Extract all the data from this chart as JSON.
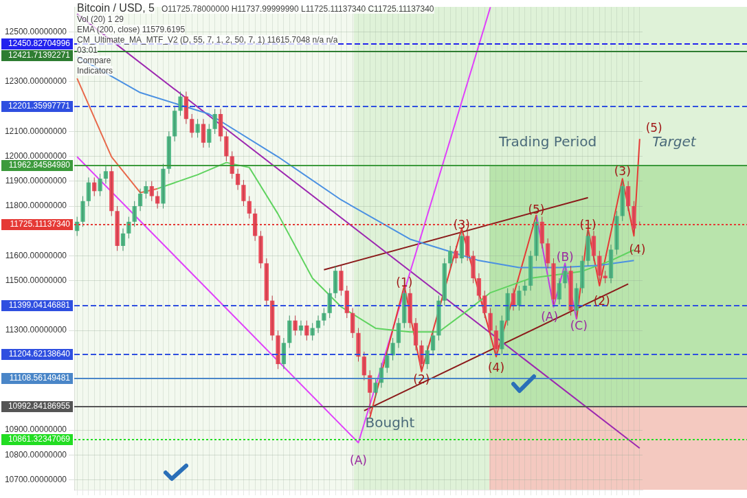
{
  "chart_data": {
    "type": "candlestick",
    "title": "Bitcoin / USD, 5",
    "categories": [
      null,
      null,
      null,
      null,
      null,
      null,
      null,
      null,
      null,
      null,
      null,
      null,
      null,
      null,
      null,
      null,
      null,
      null,
      null,
      null,
      null,
      null,
      null,
      null,
      null,
      null,
      null,
      null,
      null,
      null,
      null,
      null,
      null,
      null,
      null,
      null,
      null,
      null,
      null,
      null,
      null,
      null,
      null,
      null,
      null,
      null,
      null,
      null,
      null,
      null,
      null,
      null,
      null,
      null,
      null,
      null,
      null,
      null,
      null,
      null,
      null,
      null,
      null,
      null,
      null,
      null,
      null,
      null,
      null,
      null,
      null,
      null,
      null,
      null,
      null,
      null,
      null,
      null,
      null,
      null,
      null,
      null,
      null,
      null,
      null,
      null,
      null,
      null,
      null,
      null,
      null,
      null,
      null,
      null,
      null,
      null,
      null,
      null,
      null
    ],
    "ohlc": [
      [
        11700,
        11757,
        11680,
        11737
      ],
      [
        11737,
        11840,
        11717,
        11820
      ],
      [
        11820,
        11915,
        11800,
        11895
      ],
      [
        11895,
        11915,
        11840,
        11860
      ],
      [
        11860,
        11930,
        11840,
        11910
      ],
      [
        11910,
        11960,
        11890,
        11940
      ],
      [
        11940,
        11960,
        11760,
        11780
      ],
      [
        11780,
        11800,
        11620,
        11640
      ],
      [
        11640,
        11710,
        11620,
        11690
      ],
      [
        11690,
        11757,
        11670,
        11737
      ],
      [
        11737,
        11820,
        11717,
        11800
      ],
      [
        11800,
        11870,
        11780,
        11850
      ],
      [
        11850,
        11900,
        11830,
        11880
      ],
      [
        11880,
        11900,
        11820,
        11840
      ],
      [
        11840,
        11860,
        11790,
        11810
      ],
      [
        11810,
        11970,
        11790,
        11950
      ],
      [
        11950,
        12100,
        11930,
        12080
      ],
      [
        12080,
        12203,
        12060,
        12183
      ],
      [
        12183,
        12260,
        12163,
        12240
      ],
      [
        12240,
        12260,
        12130,
        12150
      ],
      [
        12150,
        12170,
        12075,
        12095
      ],
      [
        12095,
        12150,
        12075,
        12130
      ],
      [
        12130,
        12150,
        12035,
        12055
      ],
      [
        12055,
        12130,
        12035,
        12110
      ],
      [
        12110,
        12190,
        12090,
        12170
      ],
      [
        12170,
        12190,
        12060,
        12080
      ],
      [
        12080,
        12100,
        11980,
        12000
      ],
      [
        12000,
        12020,
        11910,
        11930
      ],
      [
        11930,
        11950,
        11865,
        11885
      ],
      [
        11885,
        11905,
        11800,
        11820
      ],
      [
        11820,
        11840,
        11750,
        11770
      ],
      [
        11770,
        11790,
        11660,
        11680
      ],
      [
        11680,
        11700,
        11550,
        11570
      ],
      [
        11570,
        11590,
        11400,
        11420
      ],
      [
        11420,
        11440,
        11260,
        11280
      ],
      [
        11280,
        11300,
        11145,
        11165
      ],
      [
        11165,
        11270,
        11145,
        11250
      ],
      [
        11250,
        11360,
        11230,
        11340
      ],
      [
        11340,
        11360,
        11280,
        11300
      ],
      [
        11300,
        11340,
        11280,
        11320
      ],
      [
        11320,
        11340,
        11260,
        11280
      ],
      [
        11280,
        11330,
        11260,
        11310
      ],
      [
        11310,
        11360,
        11290,
        11340
      ],
      [
        11340,
        11390,
        11320,
        11370
      ],
      [
        11370,
        11470,
        11350,
        11450
      ],
      [
        11450,
        11560,
        11430,
        11540
      ],
      [
        11540,
        11560,
        11440,
        11460
      ],
      [
        11460,
        11480,
        11350,
        11370
      ],
      [
        11370,
        11390,
        11270,
        11290
      ],
      [
        11290,
        11310,
        11175,
        11195
      ],
      [
        11195,
        11215,
        11100,
        11120
      ],
      [
        11120,
        11140,
        10965,
        11050
      ],
      [
        11050,
        11110,
        11030,
        11090
      ],
      [
        11090,
        11170,
        11070,
        11150
      ],
      [
        11150,
        11220,
        11130,
        11200
      ],
      [
        11200,
        11270,
        11180,
        11250
      ],
      [
        11250,
        11350,
        11230,
        11330
      ],
      [
        11330,
        11470,
        11310,
        11450
      ],
      [
        11450,
        11470,
        11310,
        11330
      ],
      [
        11330,
        11350,
        11220,
        11240
      ],
      [
        11240,
        11260,
        11145,
        11165
      ],
      [
        11165,
        11240,
        11145,
        11220
      ],
      [
        11220,
        11300,
        11200,
        11280
      ],
      [
        11280,
        11440,
        11260,
        11420
      ],
      [
        11420,
        11590,
        11400,
        11570
      ],
      [
        11570,
        11640,
        11550,
        11620
      ],
      [
        11620,
        11640,
        11570,
        11590
      ],
      [
        11590,
        11700,
        11570,
        11680
      ],
      [
        11680,
        11700,
        11580,
        11600
      ],
      [
        11600,
        11620,
        11490,
        11510
      ],
      [
        11510,
        11530,
        11420,
        11440
      ],
      [
        11440,
        11460,
        11350,
        11370
      ],
      [
        11370,
        11390,
        11280,
        11300
      ],
      [
        11300,
        11320,
        11205,
        11225
      ],
      [
        11225,
        11360,
        11205,
        11340
      ],
      [
        11340,
        11470,
        11320,
        11450
      ],
      [
        11450,
        11470,
        11380,
        11400
      ],
      [
        11400,
        11480,
        11380,
        11460
      ],
      [
        11460,
        11500,
        11440,
        11480
      ],
      [
        11480,
        11620,
        11460,
        11600
      ],
      [
        11600,
        11757,
        11580,
        11737
      ],
      [
        11737,
        11757,
        11630,
        11650
      ],
      [
        11650,
        11670,
        11550,
        11570
      ],
      [
        11570,
        11590,
        11405,
        11425
      ],
      [
        11425,
        11510,
        11405,
        11490
      ],
      [
        11490,
        11560,
        11470,
        11540
      ],
      [
        11540,
        11560,
        11360,
        11380
      ],
      [
        11380,
        11490,
        11360,
        11470
      ],
      [
        11470,
        11600,
        11450,
        11580
      ],
      [
        11580,
        11700,
        11560,
        11680
      ],
      [
        11680,
        11700,
        11580,
        11600
      ],
      [
        11600,
        11620,
        11500,
        11520
      ],
      [
        11520,
        11540,
        11490,
        11510
      ],
      [
        11510,
        11645,
        11490,
        11625
      ],
      [
        11625,
        11780,
        11605,
        11760
      ],
      [
        11760,
        11900,
        11740,
        11880
      ],
      [
        11880,
        11900,
        11780,
        11800
      ],
      [
        11800,
        11820,
        11690,
        11710
      ],
      [
        11725.78,
        11737.9999999,
        11725.1113734,
        11725.1113734
      ]
    ],
    "series": [
      {
        "type": "line",
        "color": "#4a90e2",
        "values": [
          12400,
          null,
          null,
          null,
          null,
          null,
          null,
          null,
          null,
          null,
          null,
          12256,
          null,
          null,
          null,
          null,
          null,
          null,
          null,
          null,
          null,
          null,
          null,
          12170,
          null,
          null,
          null,
          null,
          null,
          null,
          null,
          null,
          null,
          null,
          null,
          11998,
          null,
          null,
          null,
          null,
          null,
          null,
          null,
          null,
          null,
          null,
          11825,
          null,
          null,
          null,
          null,
          null,
          null,
          null,
          null,
          null,
          null,
          null,
          11667,
          null,
          null,
          null,
          null,
          null,
          11624,
          null,
          null,
          null,
          null,
          null,
          11581,
          null,
          null,
          null,
          null,
          null,
          null,
          11553,
          null,
          null,
          null,
          null,
          null,
          null,
          11553,
          null,
          null,
          null,
          null,
          null,
          null,
          11562,
          null,
          null,
          null,
          null,
          null,
          11581,
          null
        ]
      },
      {
        "type": "line",
        "color": "#e8684a",
        "values": [
          12313,
          null,
          null,
          null,
          null,
          null,
          11998,
          null,
          null,
          null,
          null,
          11854,
          null,
          null,
          11870,
          null,
          null,
          null,
          null,
          null,
          null,
          null,
          null,
          null,
          null,
          null,
          null,
          null,
          null,
          null,
          null,
          null,
          null,
          null,
          null,
          null,
          null,
          null,
          null,
          null,
          null,
          null,
          null,
          null,
          null,
          null,
          null,
          null,
          null,
          null,
          null,
          null,
          null,
          null,
          null,
          null,
          null,
          null,
          null,
          null,
          null,
          null,
          null,
          null,
          null,
          null,
          null,
          null,
          null,
          null,
          null,
          null,
          null,
          null,
          null,
          null,
          null,
          null,
          null,
          null,
          null,
          null,
          null,
          null,
          null,
          null,
          null,
          null,
          null,
          null,
          null,
          null,
          null,
          null,
          null,
          null,
          null,
          null,
          null
        ]
      },
      {
        "type": "line",
        "color": "#5fd35f",
        "values": [
          null,
          null,
          null,
          null,
          null,
          null,
          null,
          null,
          null,
          null,
          null,
          null,
          null,
          null,
          11870,
          null,
          null,
          null,
          null,
          null,
          null,
          11926,
          null,
          null,
          null,
          null,
          11975,
          null,
          null,
          null,
          11955,
          null,
          null,
          null,
          null,
          11768,
          null,
          null,
          null,
          null,
          null,
          11510,
          null,
          null,
          null,
          null,
          11395,
          null,
          null,
          null,
          null,
          null,
          11309,
          null,
          null,
          null,
          null,
          null,
          11294,
          null,
          null,
          null,
          null,
          11294,
          null,
          null,
          null,
          null,
          11380,
          null,
          null,
          null,
          11452,
          null,
          null,
          null,
          null,
          null,
          null,
          11510,
          null,
          null,
          null,
          null,
          null,
          null,
          null,
          null,
          11538,
          null,
          null,
          null,
          null,
          11581,
          null,
          null,
          null,
          11624,
          null
        ]
      },
      {
        "type": "line",
        "color": "#e53935",
        "values": [
          null,
          null,
          null,
          null,
          null,
          null,
          null,
          null,
          null,
          null,
          null,
          null,
          null,
          null,
          null,
          null,
          null,
          null,
          null,
          null,
          null,
          null,
          null,
          null,
          null,
          null,
          null,
          null,
          null,
          null,
          null,
          null,
          null,
          null,
          null,
          null,
          null,
          null,
          null,
          null,
          null,
          null,
          null,
          null,
          null,
          null,
          null,
          null,
          null,
          null,
          null,
          10950,
          null,
          null,
          null,
          null,
          null,
          11480,
          null,
          null,
          11135,
          null,
          null,
          null,
          null,
          null,
          null,
          11710,
          null,
          null,
          null,
          null,
          null,
          11195,
          null,
          null,
          null,
          null,
          null,
          null,
          11765,
          null,
          null,
          null,
          null,
          null,
          null,
          null,
          null,
          null,
          null,
          null,
          null,
          null,
          null,
          null,
          null,
          null,
          null
        ]
      },
      {
        "type": "line",
        "color": "#c040e0",
        "values": [
          null,
          null,
          null,
          null,
          null,
          null,
          null,
          null,
          null,
          null,
          null,
          null,
          null,
          null,
          null,
          null,
          null,
          null,
          null,
          null,
          null,
          null,
          null,
          null,
          null,
          null,
          null,
          null,
          null,
          null,
          null,
          null,
          null,
          null,
          null,
          null,
          null,
          null,
          null,
          null,
          null,
          null,
          null,
          null,
          null,
          null,
          null,
          null,
          null,
          null,
          null,
          null,
          null,
          null,
          null,
          null,
          null,
          null,
          null,
          null,
          null,
          null,
          null,
          null,
          null,
          null,
          null,
          null,
          null,
          null,
          null,
          null,
          null,
          null,
          null,
          null,
          null,
          null,
          null,
          null,
          11765,
          null,
          null,
          11395,
          null,
          11570,
          null,
          11345,
          null,
          null,
          null,
          null,
          null,
          null,
          null,
          null,
          null,
          null,
          null
        ]
      },
      {
        "type": "line",
        "color": "#e53935",
        "values": [
          null,
          null,
          null,
          null,
          null,
          null,
          null,
          null,
          null,
          null,
          null,
          null,
          null,
          null,
          null,
          null,
          null,
          null,
          null,
          null,
          null,
          null,
          null,
          null,
          null,
          null,
          null,
          null,
          null,
          null,
          null,
          null,
          null,
          null,
          null,
          null,
          null,
          null,
          null,
          null,
          null,
          null,
          null,
          null,
          null,
          null,
          null,
          null,
          null,
          null,
          null,
          null,
          null,
          null,
          null,
          null,
          null,
          null,
          null,
          null,
          null,
          null,
          null,
          null,
          null,
          null,
          null,
          null,
          null,
          null,
          null,
          null,
          null,
          null,
          null,
          null,
          null,
          null,
          null,
          null,
          null,
          null,
          null,
          null,
          null,
          null,
          null,
          11345,
          null,
          11710,
          null,
          11480,
          null,
          null,
          null,
          11910,
          null,
          11680,
          12070
        ]
      },
      {
        "type": "line",
        "color": "#e040fb",
        "values": [
          11998,
          null,
          null,
          null,
          null,
          null,
          null,
          null,
          null,
          null,
          null,
          null,
          null,
          null,
          null,
          null,
          null,
          null,
          null,
          null,
          null,
          null,
          null,
          null,
          null,
          null,
          null,
          null,
          null,
          null,
          null,
          null,
          null,
          null,
          null,
          null,
          null,
          null,
          null,
          null,
          null,
          null,
          null,
          null,
          null,
          null,
          null,
          null,
          null,
          10849,
          null,
          null,
          null,
          null,
          null,
          null,
          null,
          null,
          null,
          null,
          null,
          null,
          null,
          null,
          null,
          null,
          null,
          null,
          null,
          null,
          null,
          null,
          12600,
          null,
          null,
          null,
          null,
          null,
          null,
          null,
          null,
          null,
          null,
          null,
          null,
          null,
          null,
          null,
          null,
          null,
          null,
          null,
          null,
          null,
          null,
          null,
          null,
          null,
          null
        ]
      },
      {
        "type": "line",
        "color": "#9c27b0",
        "values": [
          12572,
          null,
          null,
          null,
          null,
          null,
          null,
          null,
          null,
          null,
          null,
          null,
          null,
          null,
          null,
          null,
          null,
          null,
          null,
          null,
          null,
          null,
          null,
          null,
          null,
          null,
          null,
          null,
          null,
          null,
          null,
          null,
          null,
          null,
          null,
          null,
          null,
          null,
          null,
          null,
          null,
          null,
          null,
          null,
          null,
          null,
          null,
          null,
          null,
          null,
          null,
          null,
          null,
          null,
          null,
          null,
          null,
          null,
          null,
          null,
          null,
          null,
          null,
          null,
          null,
          null,
          null,
          null,
          null,
          null,
          null,
          null,
          null,
          null,
          null,
          null,
          null,
          null,
          null,
          null,
          null,
          null,
          null,
          null,
          null,
          null,
          null,
          null,
          null,
          null,
          null,
          null,
          null,
          null,
          null,
          null,
          null,
          null,
          10827
        ]
      },
      {
        "type": "line",
        "color": "#8b1a1a",
        "values": [
          null,
          null,
          null,
          null,
          null,
          null,
          null,
          null,
          null,
          null,
          null,
          null,
          null,
          null,
          null,
          null,
          null,
          null,
          null,
          null,
          null,
          null,
          null,
          null,
          null,
          null,
          null,
          null,
          null,
          null,
          null,
          null,
          null,
          null,
          null,
          null,
          null,
          null,
          null,
          null,
          null,
          null,
          null,
          11544,
          null,
          null,
          null,
          null,
          null,
          null,
          null,
          null,
          null,
          null,
          null,
          null,
          null,
          null,
          null,
          null,
          null,
          null,
          null,
          null,
          null,
          null,
          null,
          null,
          null,
          null,
          null,
          null,
          null,
          null,
          null,
          null,
          null,
          null,
          null,
          null,
          null,
          null,
          null,
          null,
          null,
          null,
          null,
          null,
          null,
          11834,
          null,
          null,
          null,
          null,
          null,
          null,
          null,
          null,
          null
        ]
      },
      {
        "type": "line",
        "color": "#8b1a1a",
        "values": [
          null,
          null,
          null,
          null,
          null,
          null,
          null,
          null,
          null,
          null,
          null,
          null,
          null,
          null,
          null,
          null,
          null,
          null,
          null,
          null,
          null,
          null,
          null,
          null,
          null,
          null,
          null,
          null,
          null,
          null,
          null,
          null,
          null,
          null,
          null,
          null,
          null,
          null,
          null,
          null,
          null,
          null,
          null,
          null,
          null,
          null,
          null,
          null,
          null,
          null,
          10978,
          null,
          null,
          null,
          null,
          null,
          null,
          null,
          null,
          null,
          null,
          null,
          null,
          null,
          null,
          null,
          null,
          null,
          null,
          null,
          null,
          null,
          null,
          null,
          null,
          null,
          null,
          null,
          null,
          null,
          null,
          null,
          null,
          null,
          null,
          null,
          null,
          null,
          null,
          null,
          null,
          null,
          null,
          null,
          null,
          null,
          11487,
          null,
          null
        ]
      }
    ],
    "ylim": [
      10660,
      12600
    ],
    "yticks": [
      {
        "value": 10700,
        "label": "10700.00000000"
      },
      {
        "value": 10800,
        "label": "10800.00000000"
      },
      {
        "value": 10900,
        "label": "10900.00000000"
      },
      {
        "value": 11300,
        "label": "11300.00000000"
      },
      {
        "value": 11500,
        "label": "11500.00000000"
      },
      {
        "value": 11600,
        "label": "11600.00000000"
      },
      {
        "value": 11800,
        "label": "11800.00000000"
      },
      {
        "value": 11900,
        "label": "11900.00000000"
      },
      {
        "value": 12000,
        "label": "12000.00000000"
      },
      {
        "value": 12100,
        "label": "12100.00000000"
      },
      {
        "value": 12300,
        "label": "12300.00000000"
      },
      {
        "value": 12500,
        "label": "12500.00000000"
      }
    ],
    "tick_labels": "y",
    "grid": true,
    "ref_lines": [
      {
        "axis": "y",
        "value": 12450.82704996,
        "label": "12450.82704996",
        "color": "#2222ee",
        "line_style": "dashed"
      },
      {
        "axis": "y",
        "value": 12421.71392271,
        "label": "12421.71392271",
        "color": "#2e7d32",
        "line_style": "solid"
      },
      {
        "axis": "y",
        "value": 12201.35997771,
        "label": "12201.35997771",
        "color": "#2f4fe0",
        "line_style": "dashed"
      },
      {
        "axis": "y",
        "value": 11962.8458498,
        "label": "11962.84584980",
        "color": "#3c9a3c",
        "line_style": "solid"
      },
      {
        "axis": "y",
        "value": 11725.1113734,
        "label": "11725.11137340",
        "color": "#e53935",
        "line_style": "dotted"
      },
      {
        "axis": "y",
        "value": 11399.04146881,
        "label": "11399.04146881",
        "color": "#2f4fe0",
        "line_style": "dashed"
      },
      {
        "axis": "y",
        "value": 11204.6213864,
        "label": "11204.62138640",
        "color": "#2f4fe0",
        "line_style": "dashed"
      },
      {
        "axis": "y",
        "value": 11108.56149481,
        "label": "11108.56149481",
        "color": "#4a86c8",
        "line_style": "solid"
      },
      {
        "axis": "y",
        "value": 10992.84186955,
        "label": "10992.84186955",
        "color": "#555555",
        "line_style": "solid"
      },
      {
        "axis": "y",
        "value": 10861.32347069,
        "label": "10861.32347069",
        "color": "#22dd22",
        "line_style": "dotted"
      }
    ],
    "annotations": [
      "O11725.78000000 H11737.99999990 L11725.11137340 C11725.11137340",
      "Vol (20)  1  29",
      "EMA (200, close)  11579.6195",
      "CM_Ultimate_MA_MTF_V2 (D, 55, 7, 1, 2, 50, 7, 1)  11615.7048  n/a  n/a",
      "03:01",
      "Compare",
      "Indicators",
      "Trading Period",
      "Target",
      "Bought",
      "(1)",
      "(2)",
      "(3)",
      "(4)",
      "(5)",
      "(A)",
      "(A)",
      "(B)",
      "(C)",
      "(1)",
      "(2)",
      "(3)",
      "(4)",
      "(5)"
    ]
  }
}
